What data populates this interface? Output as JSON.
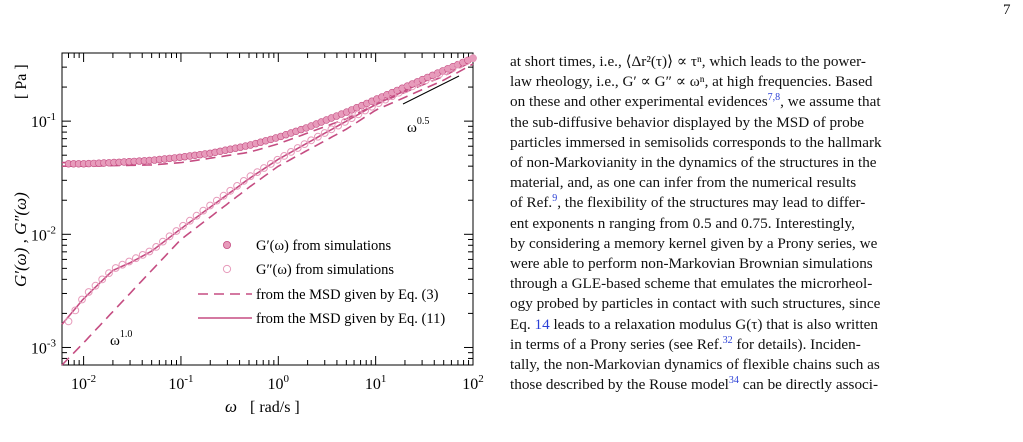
{
  "page": {
    "number": "7"
  },
  "figure": {
    "chart_data": {
      "type": "scatter",
      "xlabel_symbol": "ω",
      "xlabel_unit": "[ rad/s ]",
      "ylabel": "G′(ω) , G″(ω)",
      "ylabel_unit": "[ Pa ]",
      "x_scale": "log",
      "y_scale": "log",
      "xlim": [
        0.006,
        100
      ],
      "ylim": [
        0.0007,
        0.4
      ],
      "x_ticks": [
        {
          "value": 0.01,
          "base": "10",
          "exp": "-2"
        },
        {
          "value": 0.1,
          "base": "10",
          "exp": "-1"
        },
        {
          "value": 1,
          "base": "10",
          "exp": "0"
        },
        {
          "value": 10,
          "base": "10",
          "exp": "1"
        },
        {
          "value": 100,
          "base": "10",
          "exp": "2"
        }
      ],
      "y_ticks": [
        {
          "value": 0.001,
          "base": "10",
          "exp": "-3"
        },
        {
          "value": 0.01,
          "base": "10",
          "exp": "-2"
        },
        {
          "value": 0.1,
          "base": "10",
          "exp": "-1"
        }
      ],
      "grid": false,
      "legend_position": "bottom-right",
      "legend": [
        {
          "symbol": "filled-circle",
          "label": "G′(ω) from simulations"
        },
        {
          "symbol": "open-circle",
          "label": "G″(ω) from simulations"
        },
        {
          "symbol": "dashed-line",
          "label": "from the MSD given by Eq. (3)"
        },
        {
          "symbol": "solid-line",
          "label": "from the MSD given by Eq. (11)"
        }
      ],
      "annotations": [
        {
          "base": "ω",
          "exp": "0.5"
        },
        {
          "base": "ω",
          "exp": "1.0"
        }
      ],
      "series": [
        {
          "name": "G′(ω) from simulations",
          "marker": "filled-circle",
          "x": [
            0.007,
            0.01,
            0.02,
            0.05,
            0.1,
            0.2,
            0.5,
            1,
            2,
            5,
            10,
            20,
            50,
            100
          ],
          "values": [
            0.042,
            0.042,
            0.043,
            0.045,
            0.048,
            0.052,
            0.061,
            0.072,
            0.088,
            0.12,
            0.155,
            0.2,
            0.28,
            0.36
          ]
        },
        {
          "name": "G″(ω) from simulations",
          "marker": "open-circle",
          "x": [
            0.007,
            0.01,
            0.02,
            0.03,
            0.05,
            0.1,
            0.2,
            0.5,
            1,
            2,
            5,
            10,
            20,
            50,
            100
          ],
          "values": [
            0.0017,
            0.0028,
            0.0049,
            0.0058,
            0.0072,
            0.0115,
            0.018,
            0.032,
            0.046,
            0.065,
            0.1,
            0.14,
            0.19,
            0.27,
            0.36
          ]
        },
        {
          "name": "from the MSD given by Eq. (3) — G′",
          "style": "dashed",
          "x": [
            0.006,
            0.01,
            0.05,
            0.1,
            0.5,
            1,
            5,
            10,
            50,
            100
          ],
          "values": [
            0.04,
            0.04,
            0.041,
            0.043,
            0.053,
            0.063,
            0.105,
            0.14,
            0.25,
            0.34
          ]
        },
        {
          "name": "from the MSD given by Eq. (3) — G″",
          "style": "dashed",
          "x": [
            0.006,
            0.01,
            0.05,
            0.1,
            0.5,
            1,
            5,
            10,
            50,
            100
          ],
          "values": [
            0.0007,
            0.0011,
            0.0048,
            0.009,
            0.026,
            0.04,
            0.085,
            0.125,
            0.23,
            0.32
          ]
        },
        {
          "name": "from the MSD given by Eq. (11) — G′",
          "style": "solid",
          "x": [
            0.006,
            0.01,
            0.05,
            0.1,
            0.5,
            1,
            5,
            10,
            50,
            100
          ],
          "values": [
            0.043,
            0.043,
            0.045,
            0.048,
            0.061,
            0.072,
            0.12,
            0.155,
            0.28,
            0.37
          ]
        },
        {
          "name": "from the MSD given by Eq. (11) — G″",
          "style": "solid",
          "x": [
            0.006,
            0.01,
            0.02,
            0.03,
            0.05,
            0.1,
            0.5,
            1,
            5,
            10,
            50,
            100
          ],
          "values": [
            0.0016,
            0.0027,
            0.0048,
            0.0056,
            0.0071,
            0.0112,
            0.031,
            0.046,
            0.1,
            0.14,
            0.27,
            0.37
          ]
        }
      ]
    }
  },
  "body_text": {
    "line_1": "at short times, i.e., ⟨Δr²(τ)⟩ ∝ τⁿ, which leads to the power-",
    "line_2": "law rheology, i.e., G′ ∝ G″ ∝ ωⁿ, at high frequencies. Based",
    "line_3a": "on these and other experimental evidences",
    "cite_7_8": "7,8",
    "line_3b": ", we assume that",
    "line_4": "the sub-diffusive behavior displayed by the MSD of probe",
    "line_5": "particles immersed in semisolids corresponds to the hallmark",
    "line_6": "of non-Markovianity in the dynamics of the structures in the",
    "line_7": "material, and, as one can infer from the numerical results",
    "line_8a": "of Ref.",
    "cite_9": "9",
    "line_8b": ", the flexibility of the structures may lead to differ-",
    "line_9": "ent exponents n ranging from 0.5 and 0.75.  Interestingly,",
    "line_10": "by considering a memory kernel given by a Prony series, we",
    "line_11": "were able to perform non-Markovian Brownian simulations",
    "line_12": "through a GLE-based scheme that emulates the microrheol-",
    "line_13": "ogy probed by particles in contact with such structures, since",
    "line_14a": "Eq.",
    "cite_eq_14": "14",
    "line_14b": "leads to a relaxation modulus G(τ) that is also written",
    "line_15a": "in terms of a Prony series (see Ref.",
    "cite_32": "32",
    "line_15b": " for details).  Inciden-",
    "line_16": "tally, the non-Markovian dynamics of flexible chains such as",
    "line_17a": "those described by the Rouse model",
    "cite_34": "34",
    "line_17b": " can be directly associ-"
  },
  "colors": {
    "series": "#c54d82",
    "series_light": "#e79bbb",
    "cite": "#2a3fd6"
  }
}
